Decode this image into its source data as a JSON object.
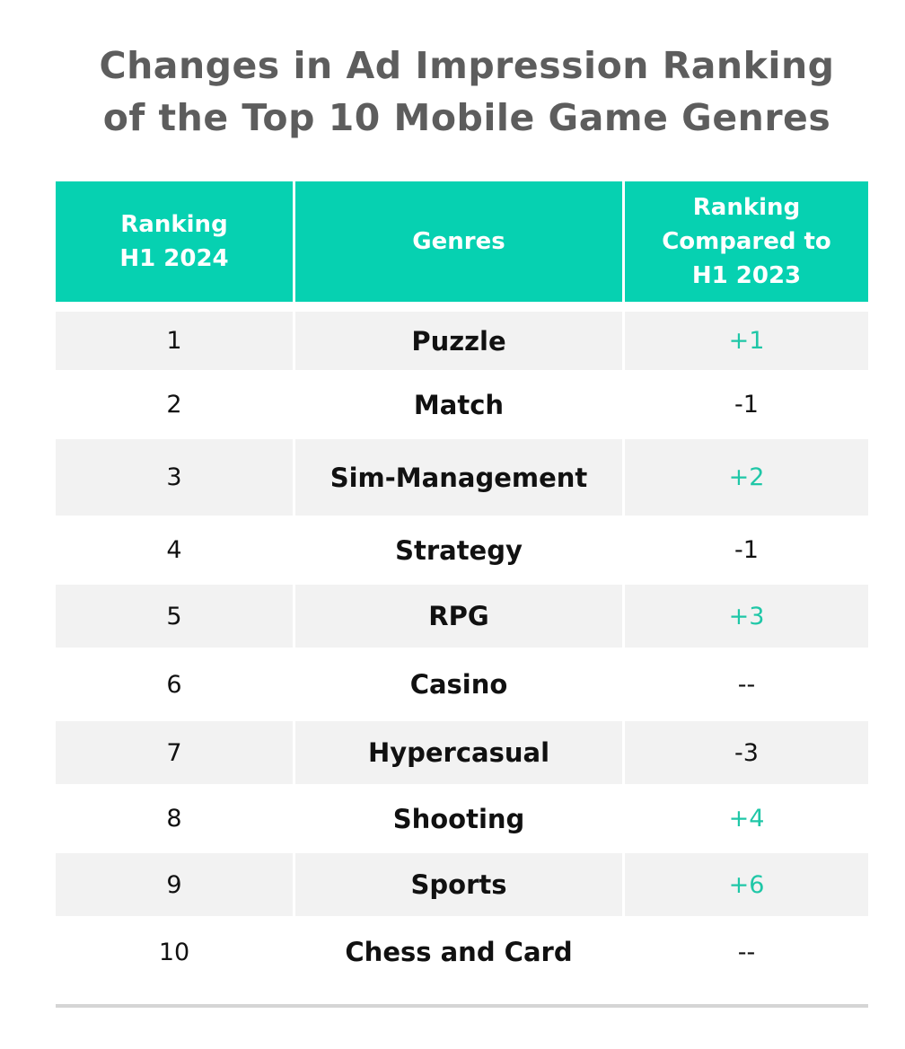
{
  "chart_data": {
    "type": "table",
    "title_lines": [
      "Changes in Ad Impression Ranking",
      "of the Top 10 Mobile Game Genres"
    ],
    "columns": [
      [
        "Ranking",
        "H1 2024"
      ],
      [
        "Genres"
      ],
      [
        "Ranking",
        "Compared to",
        "H1 2023"
      ]
    ],
    "rows": [
      {
        "rank": "1",
        "genre": "Puzzle",
        "change": "+1",
        "direction": "up"
      },
      {
        "rank": "2",
        "genre": "Match",
        "change": "-1",
        "direction": "down"
      },
      {
        "rank": "3",
        "genre": "Sim-Management",
        "change": "+2",
        "direction": "up"
      },
      {
        "rank": "4",
        "genre": "Strategy",
        "change": "-1",
        "direction": "down"
      },
      {
        "rank": "5",
        "genre": "RPG",
        "change": "+3",
        "direction": "up"
      },
      {
        "rank": "6",
        "genre": "Casino",
        "change": "--",
        "direction": "none"
      },
      {
        "rank": "7",
        "genre": "Hypercasual",
        "change": "-3",
        "direction": "down"
      },
      {
        "rank": "8",
        "genre": "Shooting",
        "change": "+4",
        "direction": "up"
      },
      {
        "rank": "9",
        "genre": "Sports",
        "change": "+6",
        "direction": "up"
      },
      {
        "rank": "10",
        "genre": "Chess and Card",
        "change": "--",
        "direction": "none"
      }
    ]
  },
  "colors": {
    "header_bg": "#06d1b1",
    "positive_change": "#1fc7a7",
    "title_text": "#5d5d5d",
    "shaded_row": "#f2f2f2"
  }
}
